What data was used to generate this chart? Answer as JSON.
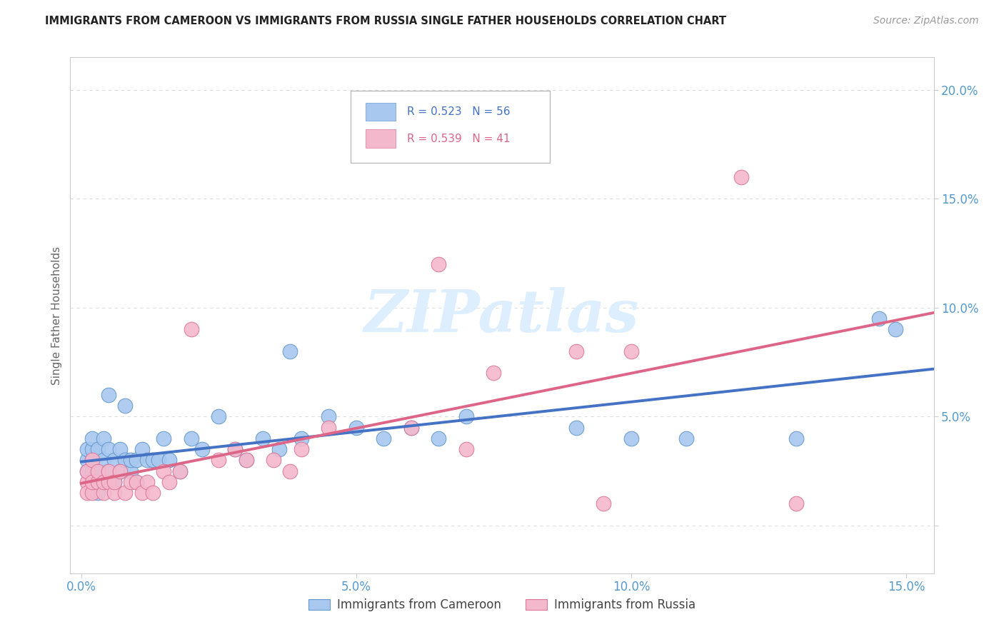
{
  "title": "IMMIGRANTS FROM CAMEROON VS IMMIGRANTS FROM RUSSIA SINGLE FATHER HOUSEHOLDS CORRELATION CHART",
  "source": "Source: ZipAtlas.com",
  "ylabel": "Single Father Households",
  "xlim": [
    -0.002,
    0.155
  ],
  "ylim": [
    -0.022,
    0.215
  ],
  "yticks": [
    0.0,
    0.05,
    0.1,
    0.15,
    0.2
  ],
  "xticks": [
    0.0,
    0.05,
    0.1,
    0.15
  ],
  "ytick_labels": [
    "",
    "5.0%",
    "10.0%",
    "15.0%",
    "20.0%"
  ],
  "xtick_labels": [
    "0.0%",
    "5.0%",
    "10.0%",
    "15.0%"
  ],
  "legend1_label": "R = 0.523   N = 56",
  "legend2_label": "R = 0.539   N = 41",
  "cameroon_color": "#a8c8f0",
  "russia_color": "#f4b8cc",
  "cameroon_edge_color": "#6699cc",
  "russia_edge_color": "#dd7799",
  "cameroon_line_color": "#4472c4",
  "russia_line_color": "#dd6688",
  "watermark_color": "#ddeeff",
  "tick_color": "#5599cc",
  "grid_color": "#dddddd",
  "cam_x": [
    0.001,
    0.001,
    0.001,
    0.002,
    0.002,
    0.002,
    0.002,
    0.002,
    0.003,
    0.003,
    0.003,
    0.003,
    0.004,
    0.004,
    0.004,
    0.005,
    0.005,
    0.005,
    0.006,
    0.006,
    0.007,
    0.007,
    0.008,
    0.008,
    0.009,
    0.009,
    0.01,
    0.01,
    0.011,
    0.012,
    0.013,
    0.014,
    0.015,
    0.016,
    0.018,
    0.02,
    0.022,
    0.025,
    0.028,
    0.03,
    0.033,
    0.036,
    0.038,
    0.04,
    0.045,
    0.05,
    0.055,
    0.06,
    0.065,
    0.07,
    0.09,
    0.1,
    0.11,
    0.13,
    0.145,
    0.148
  ],
  "cam_y": [
    0.03,
    0.035,
    0.025,
    0.02,
    0.03,
    0.035,
    0.04,
    0.025,
    0.015,
    0.02,
    0.025,
    0.035,
    0.02,
    0.03,
    0.04,
    0.025,
    0.035,
    0.06,
    0.02,
    0.03,
    0.025,
    0.035,
    0.03,
    0.055,
    0.025,
    0.03,
    0.02,
    0.03,
    0.035,
    0.03,
    0.03,
    0.03,
    0.04,
    0.03,
    0.025,
    0.04,
    0.035,
    0.05,
    0.035,
    0.03,
    0.04,
    0.035,
    0.08,
    0.04,
    0.05,
    0.045,
    0.04,
    0.045,
    0.04,
    0.05,
    0.045,
    0.04,
    0.04,
    0.04,
    0.095,
    0.09
  ],
  "rus_x": [
    0.001,
    0.001,
    0.001,
    0.002,
    0.002,
    0.002,
    0.003,
    0.003,
    0.004,
    0.004,
    0.005,
    0.005,
    0.006,
    0.006,
    0.007,
    0.008,
    0.009,
    0.01,
    0.011,
    0.012,
    0.013,
    0.015,
    0.016,
    0.018,
    0.02,
    0.025,
    0.028,
    0.03,
    0.035,
    0.038,
    0.04,
    0.045,
    0.06,
    0.065,
    0.07,
    0.075,
    0.09,
    0.095,
    0.1,
    0.12,
    0.13
  ],
  "rus_y": [
    0.02,
    0.025,
    0.015,
    0.015,
    0.02,
    0.03,
    0.02,
    0.025,
    0.015,
    0.02,
    0.02,
    0.025,
    0.015,
    0.02,
    0.025,
    0.015,
    0.02,
    0.02,
    0.015,
    0.02,
    0.015,
    0.025,
    0.02,
    0.025,
    0.09,
    0.03,
    0.035,
    0.03,
    0.03,
    0.025,
    0.035,
    0.045,
    0.045,
    0.12,
    0.035,
    0.07,
    0.08,
    0.01,
    0.08,
    0.16,
    0.01
  ],
  "cam_line_x": [
    0.0,
    0.155
  ],
  "cam_line_y": [
    0.022,
    0.075
  ],
  "rus_line_x": [
    0.0,
    0.155
  ],
  "rus_line_y": [
    0.01,
    0.09
  ]
}
